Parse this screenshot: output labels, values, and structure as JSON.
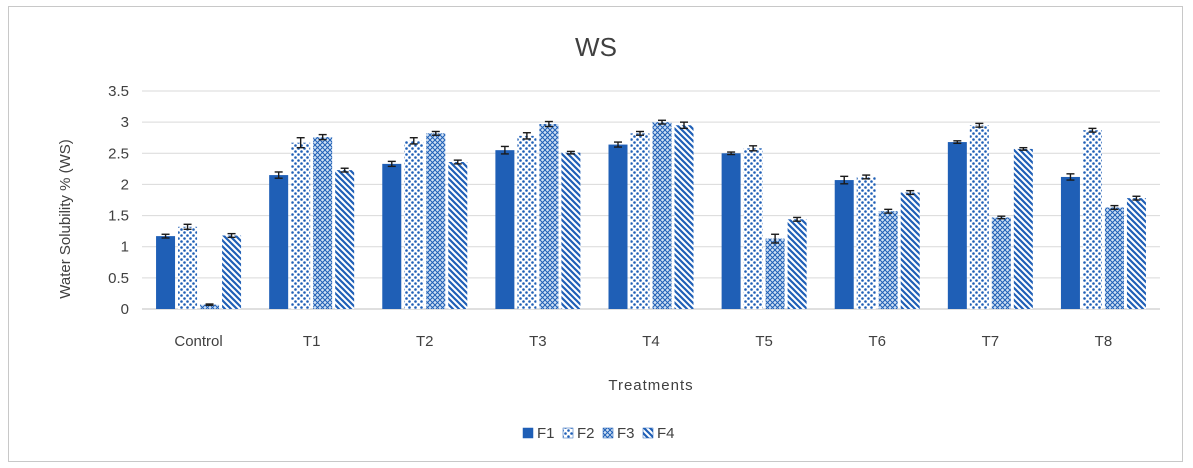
{
  "chart_data": {
    "type": "bar",
    "title": "WS",
    "xlabel": "Treatments",
    "ylabel": "Water Solubility % (WS)",
    "ylim": [
      0,
      3.5
    ],
    "yticks": [
      "0",
      "0.5",
      "1",
      "1.5",
      "2",
      "2.5",
      "3",
      "3.5"
    ],
    "grid": true,
    "legend_position": "bottom",
    "categories": [
      "Control",
      "T1",
      "T2",
      "T3",
      "T4",
      "T5",
      "T6",
      "T7",
      "T8"
    ],
    "series": [
      {
        "name": "F1",
        "values": [
          1.17,
          2.15,
          2.33,
          2.55,
          2.64,
          2.5,
          2.07,
          2.68,
          2.12
        ],
        "errors": [
          0.03,
          0.05,
          0.04,
          0.06,
          0.04,
          0.02,
          0.06,
          0.02,
          0.05
        ]
      },
      {
        "name": "F2",
        "values": [
          1.32,
          2.67,
          2.7,
          2.78,
          2.82,
          2.58,
          2.12,
          2.95,
          2.87
        ],
        "errors": [
          0.04,
          0.08,
          0.05,
          0.05,
          0.03,
          0.04,
          0.03,
          0.03,
          0.03
        ]
      },
      {
        "name": "F3",
        "values": [
          0.07,
          2.76,
          2.82,
          2.97,
          3.0,
          1.13,
          1.57,
          1.47,
          1.63
        ],
        "errors": [
          0.01,
          0.04,
          0.03,
          0.04,
          0.03,
          0.07,
          0.03,
          0.02,
          0.03
        ]
      },
      {
        "name": "F4",
        "values": [
          1.18,
          2.23,
          2.36,
          2.51,
          2.95,
          1.44,
          1.87,
          2.57,
          1.78
        ],
        "errors": [
          0.03,
          0.03,
          0.03,
          0.02,
          0.05,
          0.03,
          0.03,
          0.02,
          0.03
        ]
      }
    ],
    "colors": {
      "F1": "#1f5fb6",
      "F2": "#1f5fb6",
      "F3": "#1f5fb6",
      "F4": "#1f5fb6",
      "grid": "#d9d9d9",
      "axis": "#bfbfbf",
      "error": "#1a1a1a"
    }
  }
}
